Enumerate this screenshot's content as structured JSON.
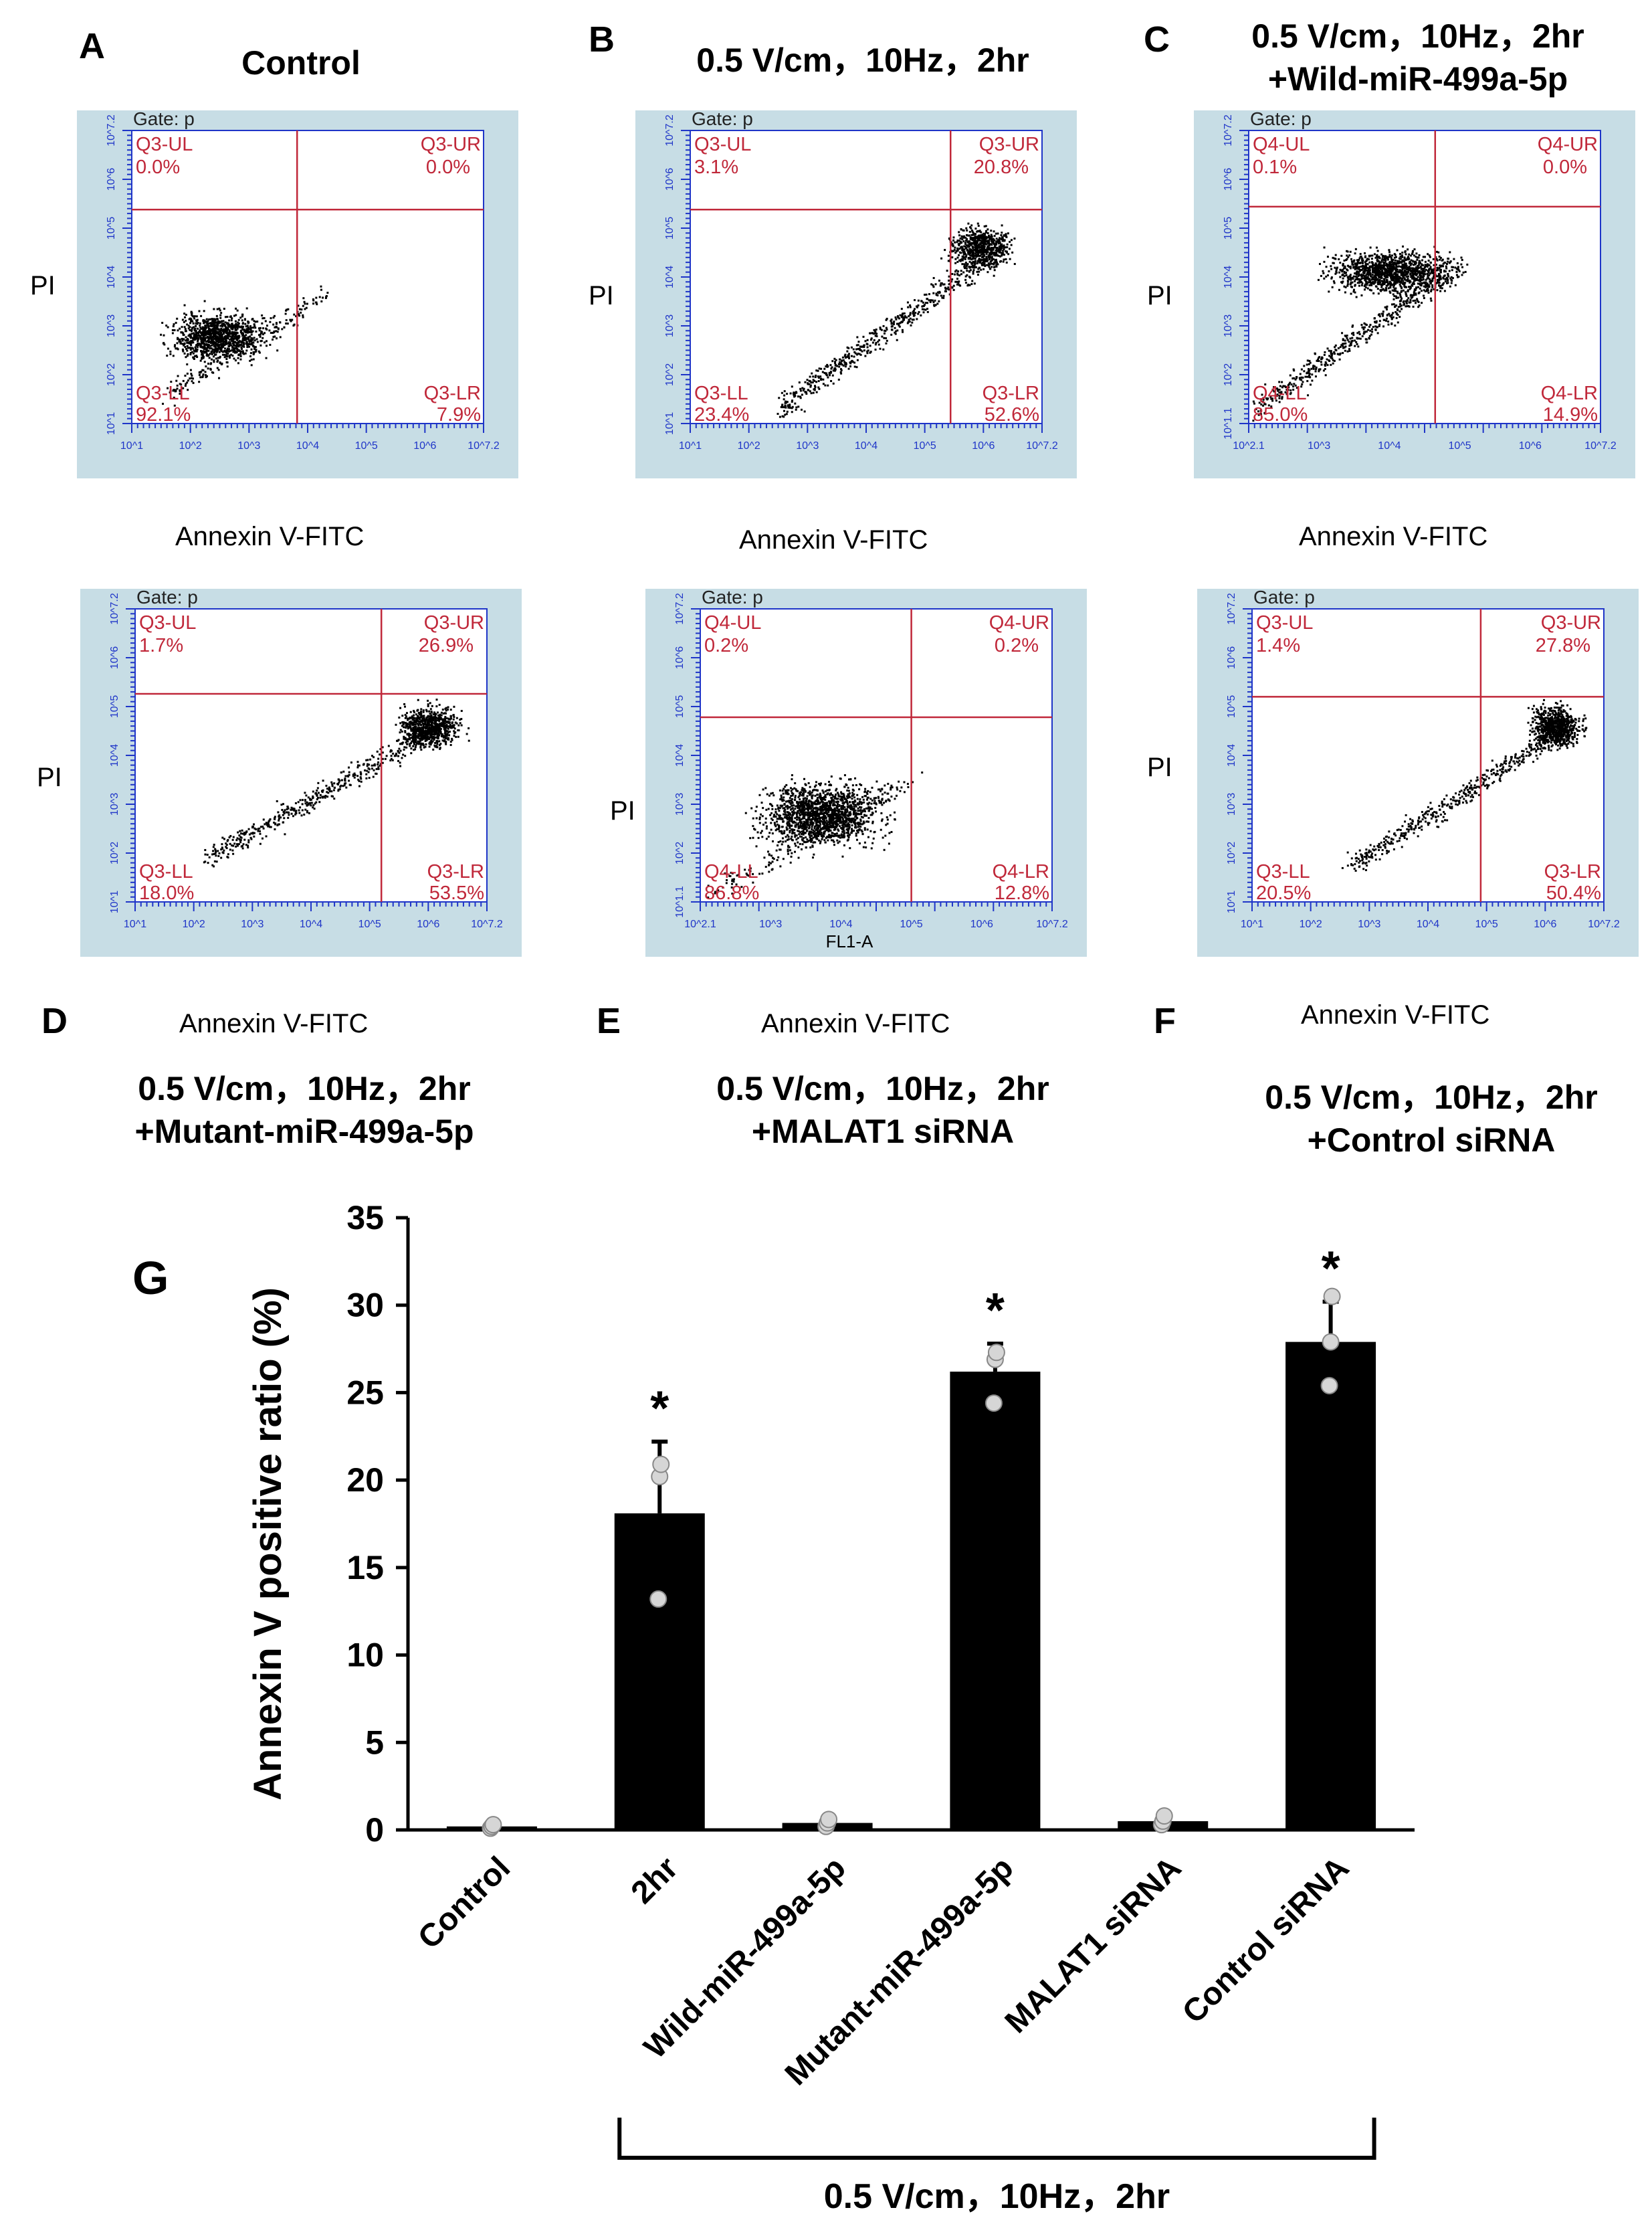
{
  "panels": [
    {
      "letter": "A",
      "title_lines": [
        "Control"
      ],
      "gate": "Gate: p",
      "q": {
        "ul_name": "Q3-UL",
        "ul_val": "0.0%",
        "ur_name": "Q3-UR",
        "ur_val": "0.0%",
        "ll_name": "Q3-LL",
        "ll_val": "92.1%",
        "lr_name": "Q3-LR",
        "lr_val": "7.9%"
      },
      "xlabel": "Annexin V-FITC",
      "ylabel": "PI",
      "inner_xlabel": ""
    },
    {
      "letter": "B",
      "title_lines": [
        "0.5 V/cm，10Hz，2hr"
      ],
      "gate": "Gate: p",
      "q": {
        "ul_name": "Q3-UL",
        "ul_val": "3.1%",
        "ur_name": "Q3-UR",
        "ur_val": "20.8%",
        "ll_name": "Q3-LL",
        "ll_val": "23.4%",
        "lr_name": "Q3-LR",
        "lr_val": "52.6%"
      },
      "xlabel": "Annexin V-FITC",
      "ylabel": "PI",
      "inner_xlabel": ""
    },
    {
      "letter": "C",
      "title_lines": [
        "0.5 V/cm，10Hz，2hr",
        "+Wild-miR-499a-5p"
      ],
      "gate": "Gate: p",
      "q": {
        "ul_name": "Q4-UL",
        "ul_val": "0.1%",
        "ur_name": "Q4-UR",
        "ur_val": "0.0%",
        "ll_name": "Q4-LL",
        "ll_val": "85.0%",
        "lr_name": "Q4-LR",
        "lr_val": "14.9%"
      },
      "xlabel": "Annexin V-FITC",
      "ylabel": "PI",
      "inner_xlabel": ""
    },
    {
      "letter": "D",
      "title_lines": [
        "0.5 V/cm，10Hz，2hr",
        "+Mutant-miR-499a-5p"
      ],
      "gate": "Gate: p",
      "q": {
        "ul_name": "Q3-UL",
        "ul_val": "1.7%",
        "ur_name": "Q3-UR",
        "ur_val": "26.9%",
        "ll_name": "Q3-LL",
        "ll_val": "18.0%",
        "lr_name": "Q3-LR",
        "lr_val": "53.5%"
      },
      "xlabel": "Annexin V-FITC",
      "ylabel": "PI",
      "inner_xlabel": ""
    },
    {
      "letter": "E",
      "title_lines": [
        "0.5 V/cm，10Hz，2hr",
        "+MALAT1 siRNA"
      ],
      "gate": "Gate: p",
      "q": {
        "ul_name": "Q4-UL",
        "ul_val": "0.2%",
        "ur_name": "Q4-UR",
        "ur_val": "0.2%",
        "ll_name": "Q4-LL",
        "ll_val": "86.8%",
        "lr_name": "Q4-LR",
        "lr_val": "12.8%"
      },
      "xlabel": "Annexin V-FITC",
      "ylabel": "PI",
      "inner_xlabel": "FL1-A"
    },
    {
      "letter": "F",
      "title_lines": [
        "0.5 V/cm，10Hz，2hr",
        "+Control siRNA"
      ],
      "gate": "Gate: p",
      "q": {
        "ul_name": "Q3-UL",
        "ul_val": "1.4%",
        "ur_name": "Q3-UR",
        "ur_val": "27.8%",
        "ll_name": "Q3-LL",
        "ll_val": "20.5%",
        "lr_name": "Q3-LR",
        "lr_val": "50.4%"
      },
      "xlabel": "Annexin V-FITC",
      "ylabel": "PI",
      "inner_xlabel": ""
    }
  ],
  "colors": {
    "facs_bg": "#c7dde5",
    "facs_axis": "#1f35c8",
    "quad": "#c0283a",
    "bar": "#000000",
    "point": "#d6d6d6"
  },
  "facs_ticks": {
    "std_x": [
      "10^1",
      "10^2",
      "10^3",
      "10^4",
      "10^5",
      "10^6",
      "10^7.2"
    ],
    "std_y": [
      "10^1",
      "10^2",
      "10^3",
      "10^4",
      "10^5",
      "10^6",
      "10^7.2"
    ],
    "alt_x": [
      "10^2.1",
      "10^3",
      "10^4",
      "10^5",
      "10^6",
      "10^7.2"
    ],
    "alt_y": [
      "10^1.1",
      "10^2",
      "10^3",
      "10^4",
      "10^5",
      "10^6",
      "10^7.2"
    ]
  },
  "chart_data": {
    "type": "bar",
    "panel_letter": "G",
    "categories": [
      "Control",
      "2hr",
      "Wild-miR-499a-5p",
      "Mutant-miR-499a-5p",
      "MALAT1 siRNA",
      "Control siRNA"
    ],
    "values": [
      0.2,
      18.1,
      0.4,
      26.2,
      0.5,
      27.9
    ],
    "errors": [
      0.0,
      4.1,
      0.0,
      1.6,
      0.0,
      2.3
    ],
    "points": [
      [
        0.1,
        0.2,
        0.3
      ],
      [
        13.2,
        20.2,
        20.9
      ],
      [
        0.2,
        0.4,
        0.6
      ],
      [
        24.4,
        26.9,
        27.3
      ],
      [
        0.3,
        0.5,
        0.8
      ],
      [
        25.4,
        27.9,
        30.5
      ]
    ],
    "significant": [
      false,
      true,
      false,
      true,
      false,
      true
    ],
    "sig_marker": "*",
    "ylabel": "Annexin V positive ratio (%)",
    "xlabel": "",
    "ylim": [
      0,
      35
    ],
    "yticks": [
      0,
      5,
      10,
      15,
      20,
      25,
      30,
      35
    ],
    "group_bracket_label": "0.5 V/cm，10Hz，2hr",
    "grid": false
  }
}
